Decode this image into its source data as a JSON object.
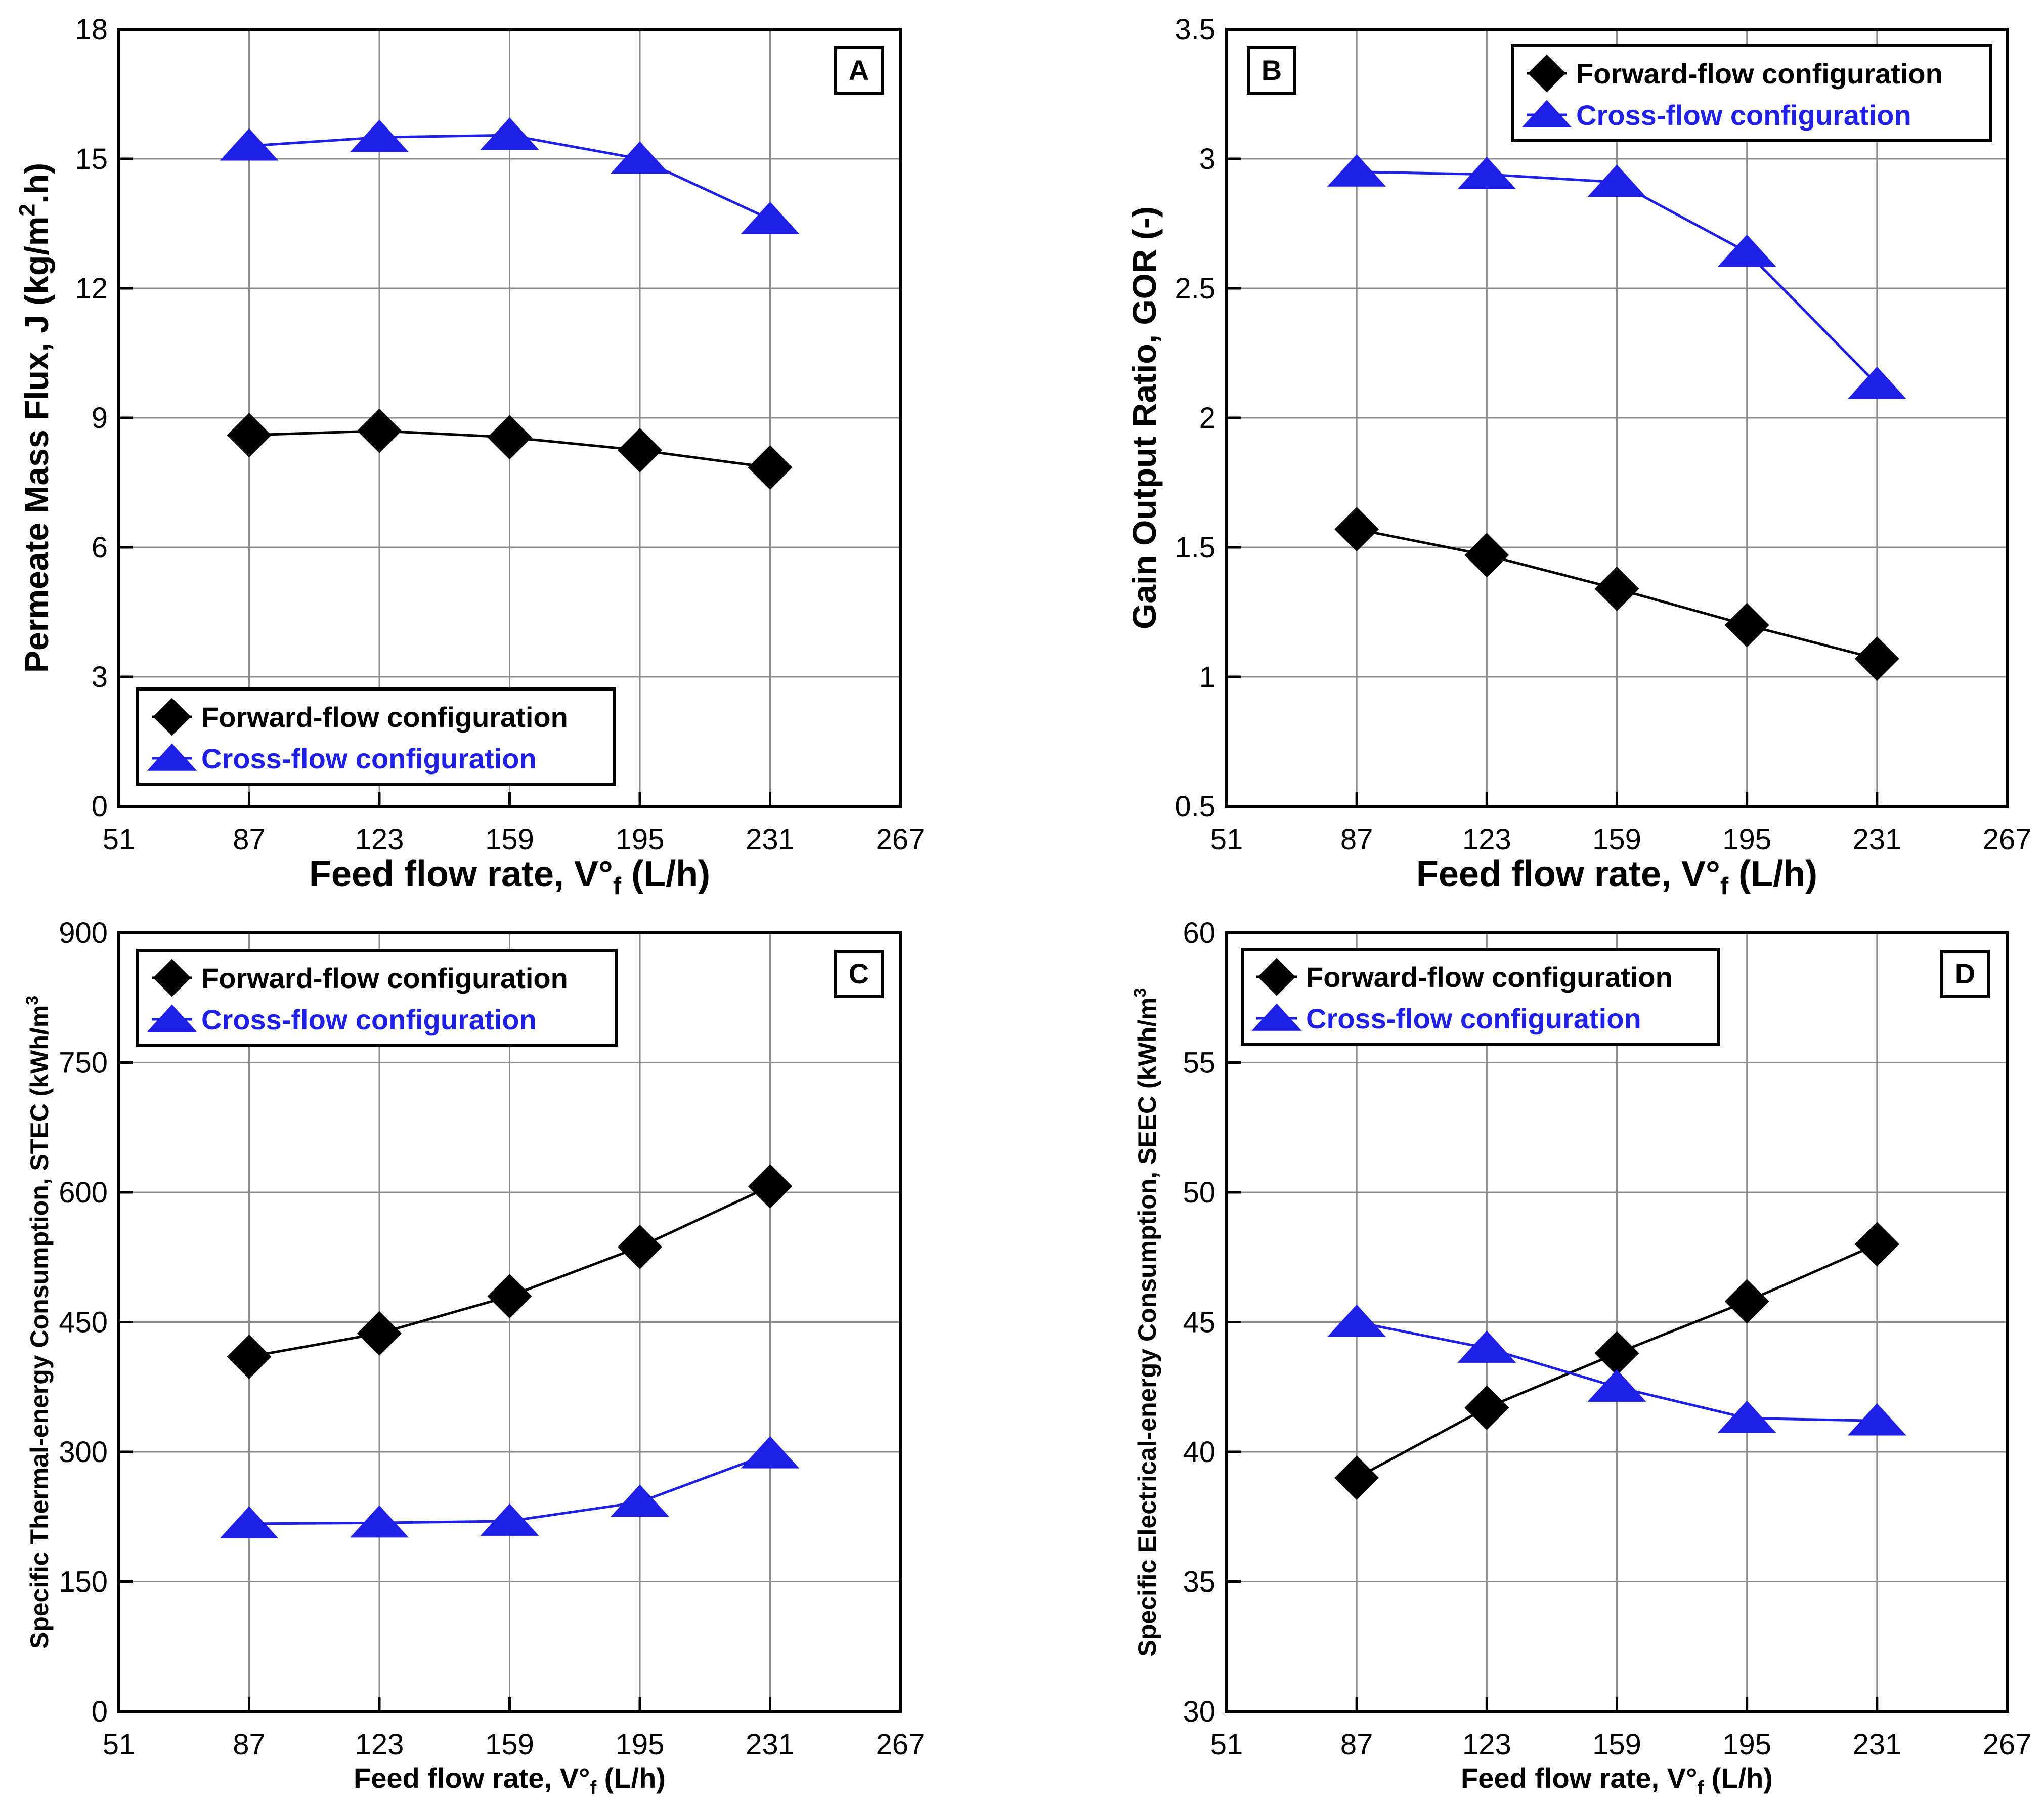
{
  "chart_data": [
    {
      "panel": "A",
      "type": "line",
      "xlabel": "Feed flow rate, V°",
      "xlabel_sub": "f",
      "xlabel_unit": " (L/h)",
      "ylabel": "Permeate Mass Flux, J (kg/m",
      "ylabel_sup": "2",
      "ylabel_end": ".h)",
      "xlim": [
        51,
        267
      ],
      "ylim": [
        0,
        18
      ],
      "xticks": [
        "51",
        "87",
        "123",
        "159",
        "195",
        "231",
        "267"
      ],
      "yticks": [
        "0",
        "3",
        "6",
        "9",
        "12",
        "15",
        "18"
      ],
      "grid": true,
      "legend_position": "bottom-left",
      "x": [
        87,
        123,
        159,
        195,
        231
      ],
      "series": [
        {
          "name": "Forward-flow configuration",
          "marker": "diamond",
          "color": "#000000",
          "values": [
            8.6,
            8.7,
            8.55,
            8.25,
            7.85
          ]
        },
        {
          "name": "Cross-flow configuration",
          "marker": "triangle",
          "color": "#1f1fe6",
          "values": [
            15.3,
            15.5,
            15.55,
            15.0,
            13.6
          ]
        }
      ]
    },
    {
      "panel": "B",
      "type": "line",
      "xlabel": "Feed flow rate, V°",
      "xlabel_sub": "f",
      "xlabel_unit": " (L/h)",
      "ylabel": "Gain Output Ratio, GOR (-)",
      "ylabel_sup": "",
      "ylabel_end": "",
      "xlim": [
        51,
        267
      ],
      "ylim": [
        0.5,
        3.5
      ],
      "xticks": [
        "51",
        "87",
        "123",
        "159",
        "195",
        "231",
        "267"
      ],
      "yticks": [
        "0.5",
        "1",
        "1.5",
        "2",
        "2.5",
        "3",
        "3.5"
      ],
      "grid": true,
      "legend_position": "top-right",
      "x": [
        87,
        123,
        159,
        195,
        231
      ],
      "series": [
        {
          "name": "Forward-flow configuration",
          "marker": "diamond",
          "color": "#000000",
          "values": [
            1.57,
            1.47,
            1.34,
            1.2,
            1.07
          ]
        },
        {
          "name": "Cross-flow configuration",
          "marker": "triangle",
          "color": "#1f1fe6",
          "values": [
            2.95,
            2.94,
            2.91,
            2.64,
            2.13
          ]
        }
      ]
    },
    {
      "panel": "C",
      "type": "line",
      "xlabel": "Feed flow rate, V°",
      "xlabel_sub": "f",
      "xlabel_unit": " (L/h)",
      "ylabel": "Specific Thermal-energy Consumption, STEC (kWh/m",
      "ylabel_sup": "3",
      "ylabel_end": "",
      "xlim": [
        51,
        267
      ],
      "ylim": [
        0,
        900
      ],
      "xticks": [
        "51",
        "87",
        "123",
        "159",
        "195",
        "231",
        "267"
      ],
      "yticks": [
        "0",
        "150",
        "300",
        "450",
        "600",
        "750",
        "900"
      ],
      "grid": true,
      "legend_position": "top-left",
      "x": [
        87,
        123,
        159,
        195,
        231
      ],
      "series": [
        {
          "name": "Forward-flow configuration",
          "marker": "diamond",
          "color": "#000000",
          "values": [
            410,
            437,
            480,
            537,
            607
          ]
        },
        {
          "name": "Cross-flow configuration",
          "marker": "triangle",
          "color": "#1f1fe6",
          "values": [
            217,
            218,
            220,
            242,
            298
          ]
        }
      ]
    },
    {
      "panel": "D",
      "type": "line",
      "xlabel": "Feed flow rate, V°",
      "xlabel_sub": "f",
      "xlabel_unit": " (L/h)",
      "ylabel": "Specific Electrical-energy Consumption, SEEC (kWh/m",
      "ylabel_sup": "3",
      "ylabel_end": "",
      "xlim": [
        51,
        267
      ],
      "ylim": [
        30,
        60
      ],
      "xticks": [
        "51",
        "87",
        "123",
        "159",
        "195",
        "231",
        "267"
      ],
      "yticks": [
        "30",
        "35",
        "40",
        "45",
        "50",
        "55",
        "60"
      ],
      "grid": true,
      "legend_position": "top-left",
      "x": [
        87,
        123,
        159,
        195,
        231
      ],
      "series": [
        {
          "name": "Forward-flow configuration",
          "marker": "diamond",
          "color": "#000000",
          "values": [
            39.0,
            41.7,
            43.8,
            45.8,
            48.0
          ]
        },
        {
          "name": "Cross-flow configuration",
          "marker": "triangle",
          "color": "#1f1fe6",
          "values": [
            45.0,
            44.0,
            42.5,
            41.3,
            41.2
          ]
        }
      ]
    }
  ]
}
